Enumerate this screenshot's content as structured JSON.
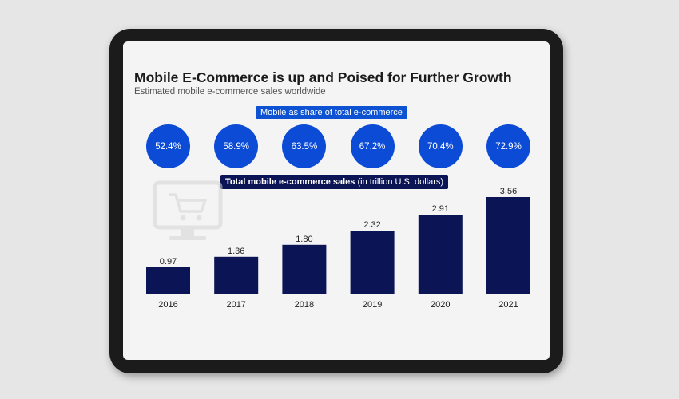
{
  "colors": {
    "bar": "#0b1555",
    "circle": "#0c4bd6",
    "pill_blue": "#0c52d3",
    "pill_navy": "#0b1555",
    "device_frame": "#1b1b1b"
  },
  "icons": {
    "decorative": "monitor-cart-icon"
  },
  "share_label": "Mobile as share of total e-commerce",
  "sales_label_bold": "Total mobile e-commerce sales",
  "sales_label_rest": " (in trillion U.S. dollars)",
  "chart_data": {
    "type": "bar",
    "title": "Mobile E-Commerce is up and Poised for Further Growth",
    "subtitle": "Estimated mobile e-commerce sales worldwide",
    "categories": [
      "2016",
      "2017",
      "2018",
      "2019",
      "2020",
      "2021"
    ],
    "values": [
      0.97,
      1.36,
      1.8,
      2.32,
      2.91,
      3.56
    ],
    "value_labels": [
      "0.97",
      "1.36",
      "1.80",
      "2.32",
      "2.91",
      "3.56"
    ],
    "share_labels": [
      "52.4%",
      "58.9%",
      "63.5%",
      "67.2%",
      "70.4%",
      "72.9%"
    ],
    "ylim": [
      0,
      3.56
    ],
    "grid": false,
    "legend": "none"
  }
}
